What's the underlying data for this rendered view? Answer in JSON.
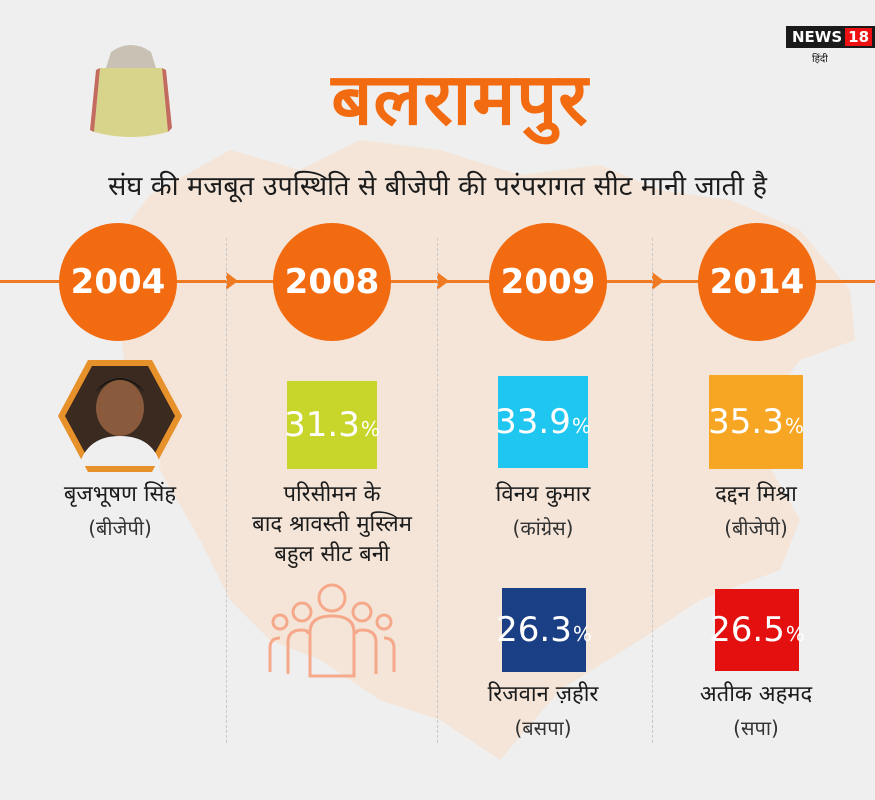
{
  "header": {
    "title": "बलरामपुर",
    "subtitle": "संघ की मजबूत उपस्थिति से बीजेपी की परंपरागत सीट मानी जाती है"
  },
  "logo": {
    "brand": "NEWS",
    "number": "18",
    "sub": "हिंदी"
  },
  "colors": {
    "accent": "#f26b10",
    "timeline": "#f07a22",
    "green": "#c8d62b",
    "cyan": "#1fc6ef",
    "amber": "#f6a623",
    "navy": "#1b3f84",
    "red": "#e3100f"
  },
  "timeline": [
    {
      "year": "2004",
      "name": "बृजभूषण सिंह",
      "party": "(बीजेपी)"
    },
    {
      "year": "2008",
      "percent": "31.3",
      "note_lines": [
        "परिसीमन के",
        "बाद श्रावस्ती मुस्लिम",
        "बहुल सीट बनी"
      ],
      "icon": "people-group-icon"
    },
    {
      "year": "2009",
      "percent": "33.9",
      "name": "विनय कुमार",
      "party": "(कांग्रेस)",
      "second": {
        "percent": "26.3",
        "name": "रिजवान ज़हीर",
        "party": "(बसपा)"
      }
    },
    {
      "year": "2014",
      "percent": "35.3",
      "name": "दद्दन मिश्रा",
      "party": "(बीजेपी)",
      "second": {
        "percent": "26.5",
        "name": "अतीक अहमद",
        "party": "(सपा)"
      }
    }
  ],
  "percent_sign": "%"
}
